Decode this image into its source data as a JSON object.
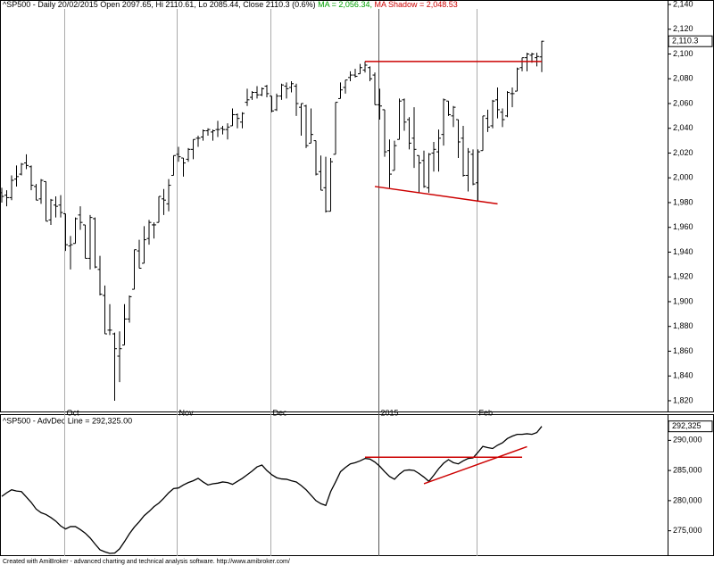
{
  "chart_data": [
    {
      "type": "ohlc",
      "title": "^SP500 - Daily 20/02/2015 Open 2097.65, Hi 2110.61, Lo 2085.44, Close 2110.3 (0.6%)",
      "ma_label": "MA = 2,056.34,",
      "ma_color": "#00a000",
      "ma_shadow_label": "MA Shadow = 2,048.53",
      "ma_shadow_color": "#cc0000",
      "color": "#000000",
      "categories": [
        null,
        null,
        null,
        null,
        null,
        null,
        null,
        null,
        null,
        null,
        null,
        null,
        null,
        "Oct",
        null,
        null,
        null,
        null,
        null,
        null,
        null,
        null,
        null,
        null,
        null,
        null,
        null,
        null,
        null,
        null,
        null,
        null,
        null,
        null,
        null,
        null,
        "Nov",
        null,
        null,
        null,
        null,
        null,
        null,
        null,
        null,
        null,
        null,
        null,
        null,
        null,
        null,
        null,
        null,
        null,
        null,
        "Dec",
        null,
        null,
        null,
        null,
        null,
        null,
        null,
        null,
        null,
        null,
        null,
        null,
        null,
        null,
        null,
        null,
        null,
        null,
        null,
        null,
        null,
        "2015",
        null,
        null,
        null,
        null,
        null,
        null,
        null,
        null,
        null,
        null,
        null,
        null,
        null,
        null,
        null,
        null,
        null,
        null,
        null,
        "Feb",
        null,
        null,
        null,
        null,
        null,
        null,
        null,
        null,
        null,
        null,
        null,
        null,
        null
      ],
      "open": [
        1988,
        1986,
        1984,
        1999,
        2003,
        2012,
        2009,
        1993,
        1983,
        1997,
        1966,
        1978,
        1978,
        1971,
        1945,
        1947,
        1970,
        1962,
        1935,
        1967,
        1926,
        1905,
        1877,
        1874,
        1856,
        1865,
        1886,
        1910,
        1941,
        1931,
        1951,
        1962,
        1964,
        1983,
        1979,
        2002,
        2019,
        2016,
        2015,
        2023,
        2032,
        2033,
        2038,
        2037,
        2039,
        2040,
        2039,
        2042,
        2051,
        2045,
        2061,
        2065,
        2069,
        2067,
        2074,
        2066,
        2055,
        2066,
        2074,
        2073,
        2074,
        2057,
        2058,
        2028,
        2030,
        2005,
        1992,
        1973,
        2019,
        2064,
        2073,
        2081,
        2083,
        2084,
        2087,
        2089,
        2083,
        2059,
        2055,
        2022,
        2006,
        2031,
        2063,
        2047,
        2032,
        2018,
        2014,
        1992,
        2020,
        2021,
        2035,
        2062,
        2050,
        2047,
        2032,
        2002,
        2019,
        1996,
        2022,
        2048,
        2042,
        2063,
        2053,
        2050,
        2068,
        2070,
        2089,
        2097,
        2099,
        2097,
        2097.65
      ],
      "high": [
        1992,
        1990,
        2002,
        2010,
        2012,
        2019,
        2010,
        1995,
        1999,
        1997,
        1983,
        1985,
        1986,
        1971,
        1953,
        1968,
        1977,
        1962,
        1970,
        1968,
        1937,
        1913,
        1898,
        1875,
        1876,
        1898,
        1905,
        1942,
        1950,
        1961,
        1966,
        1964,
        1985,
        1991,
        1999,
        2018,
        2025,
        2016,
        2024,
        2031,
        2034,
        2039,
        2040,
        2039,
        2046,
        2042,
        2044,
        2056,
        2052,
        2053,
        2072,
        2070,
        2074,
        2073,
        2075,
        2066,
        2068,
        2076,
        2077,
        2078,
        2076,
        2060,
        2059,
        2056,
        2030,
        2018,
        2017,
        2016,
        2061,
        2077,
        2079,
        2086,
        2088,
        2092,
        2094,
        2090,
        2085,
        2072,
        2055,
        2031,
        2030,
        2064,
        2064,
        2049,
        2057,
        2018,
        2022,
        2020,
        2029,
        2039,
        2064,
        2062,
        2058,
        2047,
        2042,
        2024,
        2023,
        2023,
        2050,
        2055,
        2063,
        2073,
        2056,
        2070,
        2073,
        2089,
        2097,
        2101,
        2101,
        2101,
        2110.61
      ],
      "low": [
        1980,
        1977,
        1982,
        1993,
        2002,
        2007,
        1990,
        1982,
        1979,
        1965,
        1962,
        1968,
        1968,
        1941,
        1926,
        1947,
        1958,
        1935,
        1926,
        1927,
        1905,
        1874,
        1873,
        1820,
        1835,
        1865,
        1883,
        1910,
        1927,
        1931,
        1946,
        1951,
        1964,
        1970,
        1973,
        2002,
        2013,
        2001,
        2013,
        2015,
        2025,
        2030,
        2034,
        2030,
        2033,
        2035,
        2031,
        2042,
        2040,
        2040,
        2058,
        2063,
        2064,
        2066,
        2065,
        2053,
        2054,
        2063,
        2064,
        2069,
        2050,
        2034,
        2024,
        2028,
        2002,
        1990,
        1972,
        1973,
        2019,
        2064,
        2068,
        2078,
        2081,
        2084,
        2085,
        2078,
        2059,
        2047,
        2017,
        1992,
        2006,
        2031,
        2038,
        2023,
        2008,
        1988,
        1992,
        1988,
        2005,
        2005,
        2026,
        2050,
        2041,
        2016,
        2001,
        1989,
        1994,
        1981,
        2022,
        2037,
        2040,
        2048,
        2041,
        2049,
        2057,
        2070,
        2086,
        2086,
        2093,
        2090,
        2085.44
      ],
      "close": [
        1985,
        1984,
        1998,
        2001,
        2011,
        2010,
        1994,
        1982,
        1998,
        1965,
        1982,
        1977,
        1972,
        1946,
        1946,
        1967,
        1964,
        1935,
        1968,
        1928,
        1906,
        1874,
        1877,
        1862,
        1862,
        1886,
        1904,
        1942,
        1927,
        1950,
        1964,
        1962,
        1985,
        1982,
        1994,
        2018,
        2017,
        2012,
        2023,
        2031,
        2032,
        2038,
        2039,
        2038,
        2039,
        2039,
        2041,
        2051,
        2048,
        2052,
        2063,
        2069,
        2067,
        2072,
        2068,
        2054,
        2066,
        2075,
        2072,
        2076,
        2060,
        2060,
        2026,
        2035,
        2003,
        1990,
        1973,
        2013,
        2061,
        2071,
        2079,
        2083,
        2082,
        2089,
        2091,
        2080,
        2059,
        2058,
        2021,
        2003,
        2026,
        2062,
        2045,
        2028,
        2023,
        2012,
        1993,
        2019,
        2023,
        2032,
        2063,
        2051,
        2057,
        2029,
        2002,
        2021,
        1995,
        2021,
        2050,
        2041,
        2062,
        2055,
        2047,
        2069,
        2068,
        2088,
        2097,
        2100,
        2100,
        2098,
        2110.3
      ],
      "last_value_label": "2,110.3",
      "ylim": [
        1810.6,
        2143.6
      ],
      "yticks": [
        {
          "value": 1820,
          "label": "1,820"
        },
        {
          "value": 1840,
          "label": "1,840"
        },
        {
          "value": 1860,
          "label": "1,860"
        },
        {
          "value": 1880,
          "label": "1,880"
        },
        {
          "value": 1900,
          "label": "1,900"
        },
        {
          "value": 1920,
          "label": "1,920"
        },
        {
          "value": 1940,
          "label": "1,940"
        },
        {
          "value": 1960,
          "label": "1,960"
        },
        {
          "value": 1980,
          "label": "1,980"
        },
        {
          "value": 2000,
          "label": "2,000"
        },
        {
          "value": 2020,
          "label": "2,020"
        },
        {
          "value": 2040,
          "label": "2,040"
        },
        {
          "value": 2060,
          "label": "2,060"
        },
        {
          "value": 2080,
          "label": "2,080"
        },
        {
          "value": 2100,
          "label": "2,100"
        },
        {
          "value": 2120,
          "label": "2,120"
        },
        {
          "value": 2140,
          "label": "2,140"
        }
      ],
      "trendline_color": "#cc0000",
      "trendlines": [
        {
          "x": [
            74,
            110
          ],
          "y": [
            2094,
            2094
          ]
        },
        {
          "x": [
            76,
            101
          ],
          "y": [
            1993,
            1979
          ]
        }
      ],
      "grid": false
    },
    {
      "type": "line",
      "title": "^SP500 - AdvDec Line = 292,325.00",
      "color": "#000000",
      "values": [
        280700,
        281300,
        281800,
        281600,
        281500,
        280600,
        279700,
        278600,
        278000,
        277700,
        277200,
        276600,
        275800,
        275300,
        275700,
        275700,
        275200,
        274600,
        273800,
        272800,
        271850,
        271500,
        271250,
        271300,
        272000,
        273200,
        274500,
        275600,
        276500,
        277500,
        278200,
        279000,
        279600,
        280400,
        281300,
        282000,
        282100,
        282600,
        283000,
        283300,
        283700,
        283100,
        282600,
        282800,
        282900,
        283100,
        283000,
        282700,
        283200,
        283700,
        284300,
        284900,
        285600,
        285900,
        285000,
        284300,
        283800,
        283600,
        283550,
        283300,
        283100,
        282500,
        281800,
        280900,
        280000,
        279500,
        279200,
        281500,
        283100,
        284800,
        285500,
        286100,
        286300,
        286600,
        287000,
        286900,
        286400,
        285700,
        284800,
        284000,
        283550,
        284400,
        285000,
        285100,
        285000,
        284500,
        283900,
        283200,
        284200,
        285300,
        286200,
        286800,
        286300,
        286100,
        286600,
        287000,
        287100,
        288000,
        289000,
        288800,
        288650,
        289200,
        289600,
        290300,
        290700,
        291000,
        291000,
        291100,
        291000,
        291300,
        292325
      ],
      "last_value_label": "292,325",
      "ylim": [
        270800,
        294350
      ],
      "yticks": [
        {
          "value": 275000,
          "label": "275,000"
        },
        {
          "value": 280000,
          "label": "280,000"
        },
        {
          "value": 285000,
          "label": "285,000"
        },
        {
          "value": 290000,
          "label": "290,000"
        }
      ],
      "trendline_color": "#cc0000",
      "trendlines": [
        {
          "x": [
            74,
            106
          ],
          "y": [
            287200,
            287200
          ]
        },
        {
          "x": [
            86,
            107
          ],
          "y": [
            282800,
            288950
          ]
        }
      ],
      "grid": false
    }
  ],
  "footer": "Created with AmiBroker - advanced charting and technical analysis software. http://www.amibroker.com/"
}
